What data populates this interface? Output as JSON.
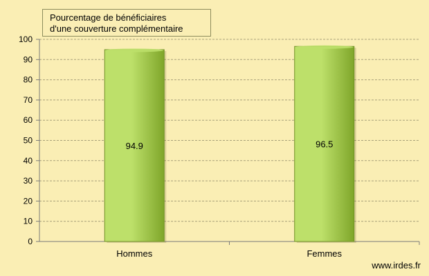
{
  "chart_data": {
    "type": "bar",
    "title_lines": [
      "Pourcentage de bénéficiaires",
      "d'une couverture complémentaire"
    ],
    "categories": [
      "Hommes",
      "Femmes"
    ],
    "values": [
      94.9,
      96.5
    ],
    "value_labels": [
      "94.9",
      "96.5"
    ],
    "ylim": [
      0,
      100
    ],
    "yticks": [
      0,
      10,
      20,
      30,
      40,
      50,
      60,
      70,
      80,
      90,
      100
    ],
    "grid": true,
    "xlabel": "",
    "ylabel": "",
    "colors": {
      "background": "#FAEEB4",
      "bar_light": "#BDE06A",
      "bar_dark": "#7FA62A",
      "bar_edge": "#6E8F25",
      "grid": "#A8A07A",
      "axis": "#7A7A7A"
    }
  },
  "watermark": "www.irdes.fr"
}
